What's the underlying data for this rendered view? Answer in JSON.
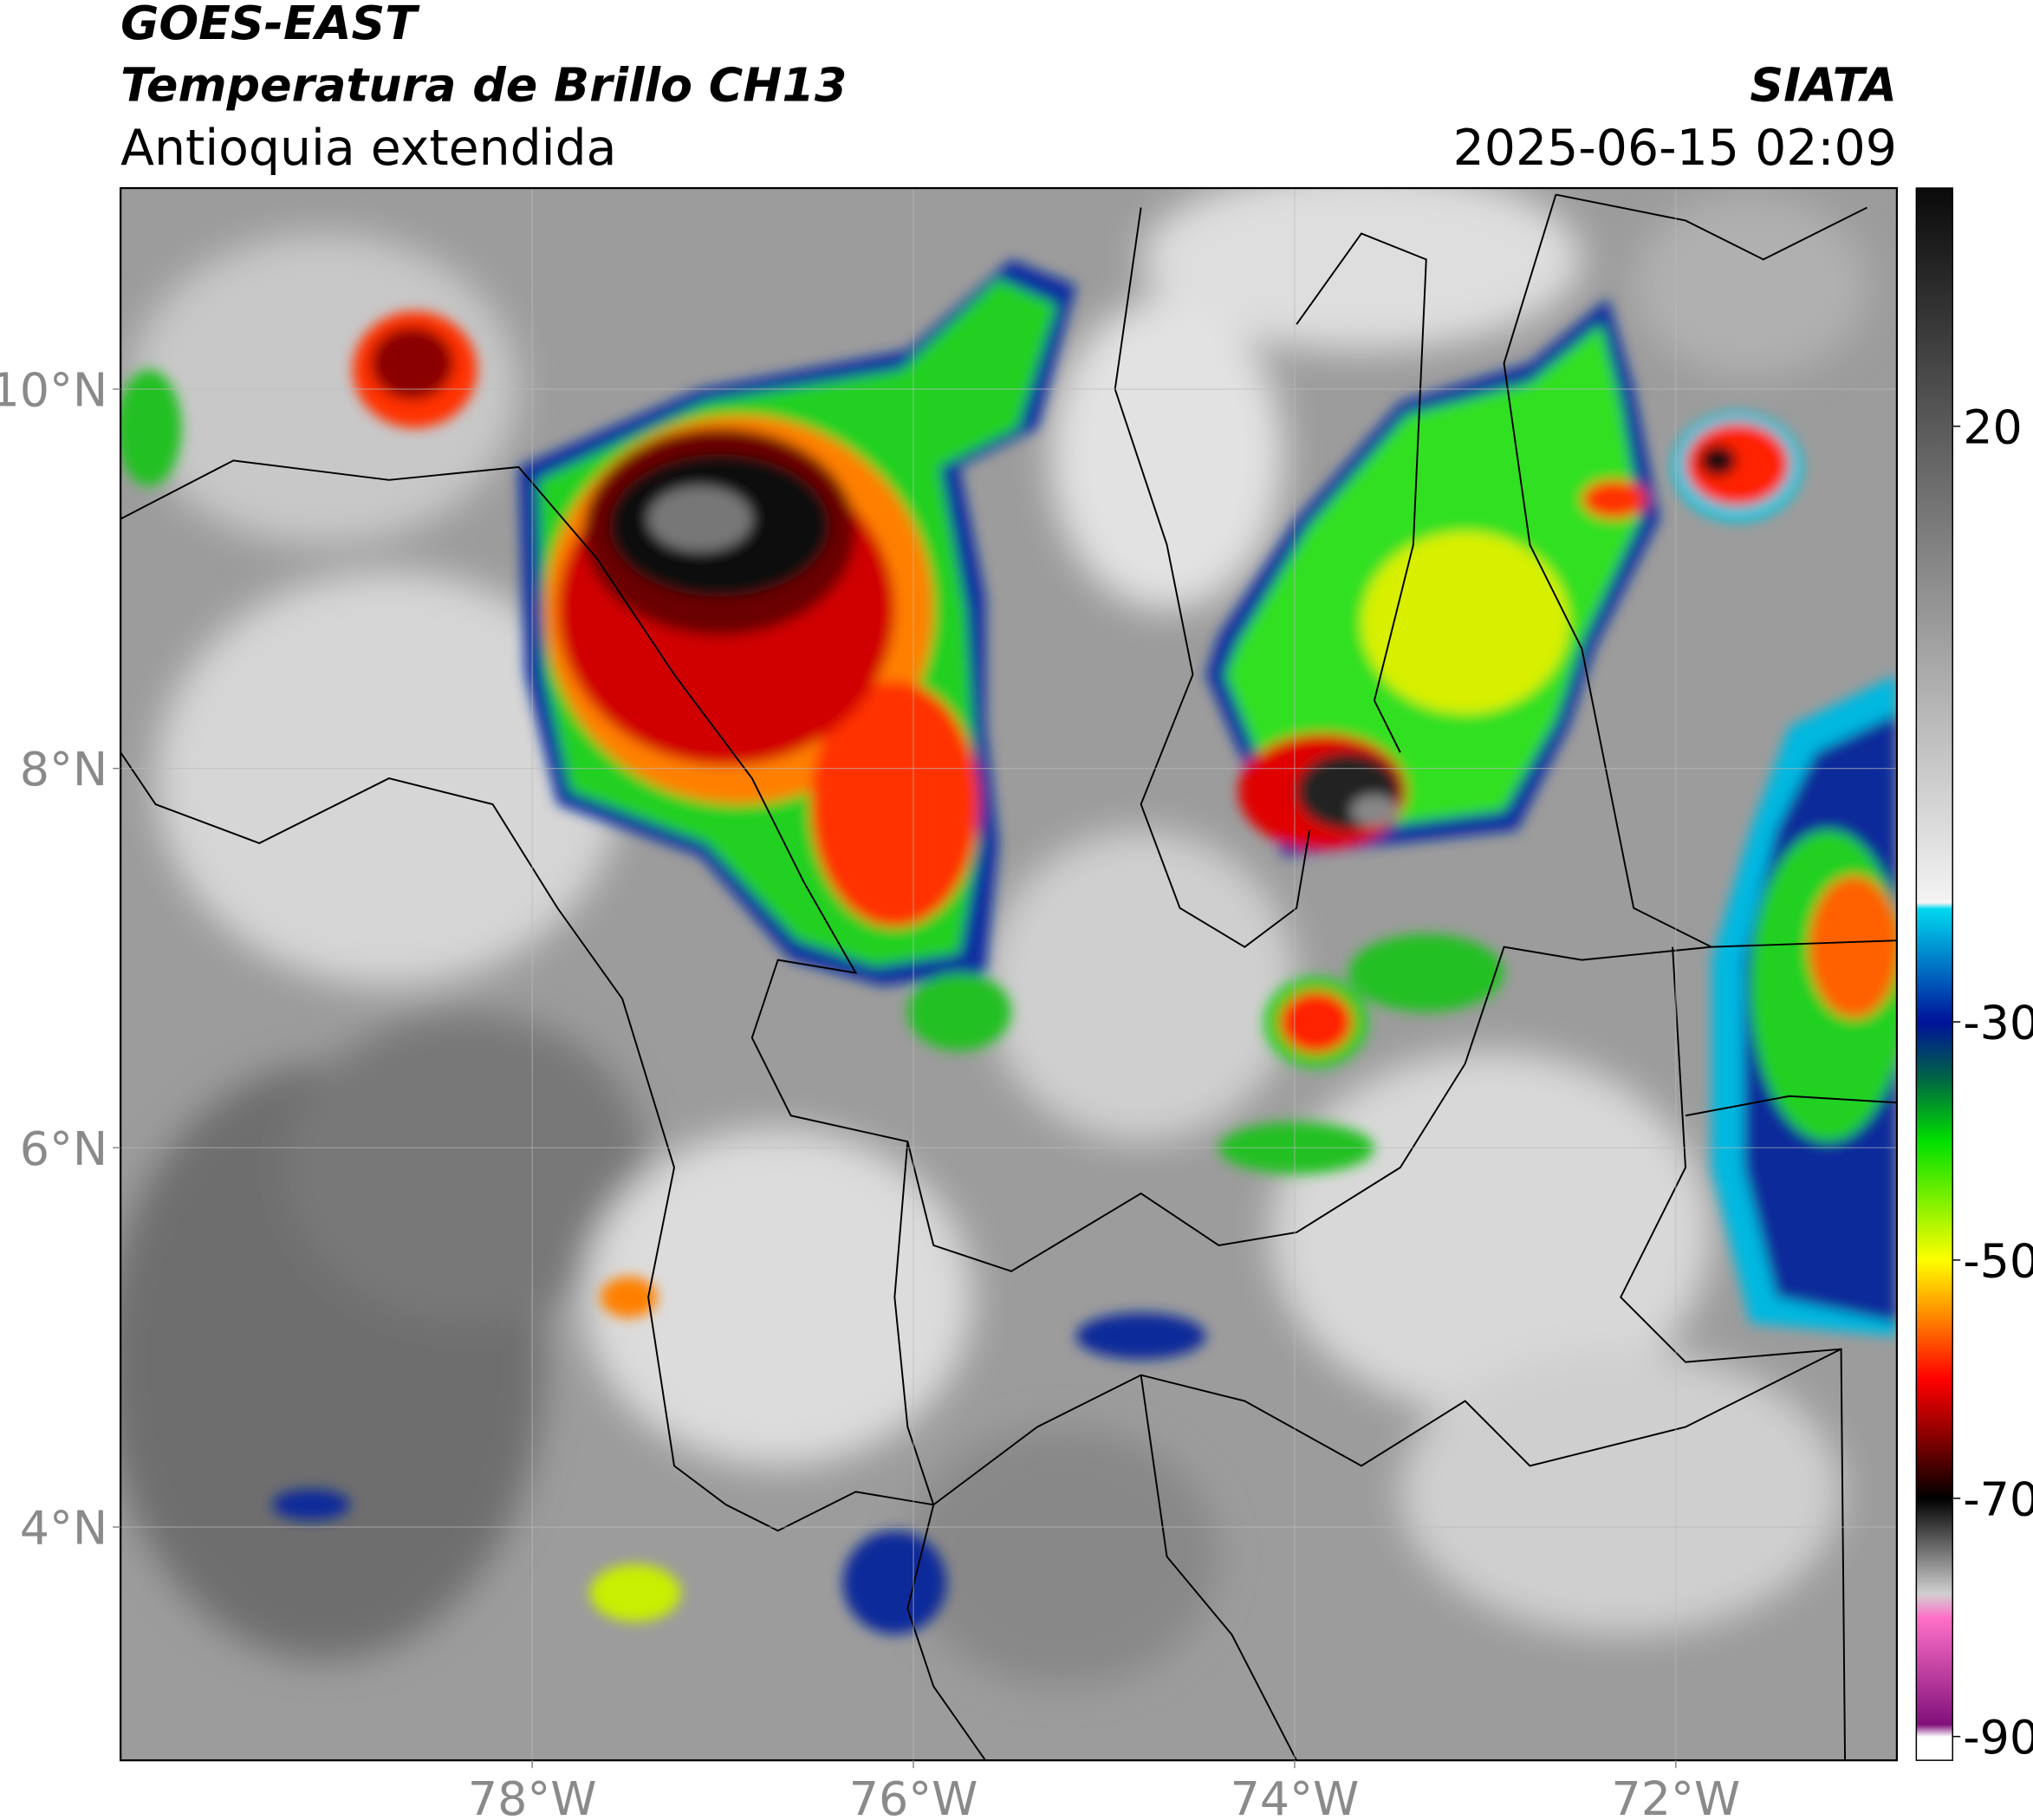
{
  "header": {
    "satellite": "GOES-EAST",
    "product": "Temperatura de Brillo CH13",
    "region": "Antioquia extendida",
    "source": "SIATA",
    "datetime": "2025-06-15 02:09"
  },
  "map": {
    "xlim": [
      -80.16,
      -70.84
    ],
    "ylim": [
      2.77,
      11.06
    ],
    "xticks": [
      {
        "value": -78,
        "label": "78°W"
      },
      {
        "value": -76,
        "label": "76°W"
      },
      {
        "value": -74,
        "label": "74°W"
      },
      {
        "value": -72,
        "label": "72°W"
      }
    ],
    "yticks": [
      {
        "value": 4,
        "label": "4°N"
      },
      {
        "value": 6,
        "label": "6°N"
      },
      {
        "value": 8,
        "label": "8°N"
      },
      {
        "value": 10,
        "label": "10°N"
      }
    ],
    "grid": true
  },
  "colorbar": {
    "lim": [
      -92,
      40
    ],
    "ticks": [
      20,
      -30,
      -50,
      -70,
      -90
    ],
    "stops": [
      {
        "value": 40,
        "color": "#0a0a0a"
      },
      {
        "value": 20,
        "color": "#5a5a5a"
      },
      {
        "value": 0,
        "color": "#a8a8a8"
      },
      {
        "value": -20,
        "color": "#f4f4f4"
      },
      {
        "value": -20.5,
        "color": "#00d8f0"
      },
      {
        "value": -30,
        "color": "#00129a"
      },
      {
        "value": -35,
        "color": "#006a40"
      },
      {
        "value": -40,
        "color": "#00e000"
      },
      {
        "value": -50,
        "color": "#ffff00"
      },
      {
        "value": -55,
        "color": "#ff8000"
      },
      {
        "value": -60,
        "color": "#ff0000"
      },
      {
        "value": -66,
        "color": "#6a0000"
      },
      {
        "value": -70,
        "color": "#000000"
      },
      {
        "value": -78,
        "color": "#d0d0d0"
      },
      {
        "value": -80,
        "color": "#ff70c8"
      },
      {
        "value": -89,
        "color": "#80107a"
      },
      {
        "value": -90,
        "color": "#ffffff"
      },
      {
        "value": -92,
        "color": "#ffffff"
      }
    ]
  }
}
